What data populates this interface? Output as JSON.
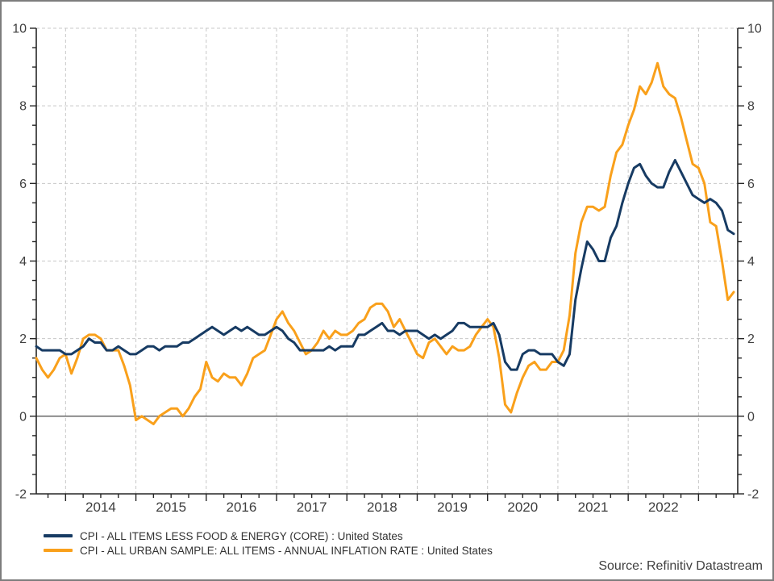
{
  "frame": {
    "background": "#ffffff",
    "border_color": "#7d7d7d",
    "axis_color": "#262626",
    "gridline_color": "#c8c8c8",
    "zero_line_color": "#333333",
    "label_color": "#3f3f3f"
  },
  "legend": [
    {
      "label": "CPI - ALL ITEMS LESS FOOD & ENERGY (CORE) : United States",
      "color": "#173b63"
    },
    {
      "label": "CPI - ALL URBAN SAMPLE: ALL ITEMS - ANNUAL INFLATION RATE : United States",
      "color": "#f9a01b"
    }
  ],
  "source": "Source: Refinitiv Datastream",
  "chart_data": {
    "type": "line",
    "frequency": "monthly",
    "x_start": "2013-08",
    "x_end": "2023-07",
    "ylim": [
      -2,
      10
    ],
    "y_ticks": [
      10,
      8,
      6,
      4,
      2,
      0,
      -2
    ],
    "y_minor_step": 0.5,
    "x_year_labels": [
      "2014",
      "2015",
      "2016",
      "2017",
      "2018",
      "2019",
      "2020",
      "2021",
      "2022"
    ],
    "grid": "dashed gray gridlines at major y ticks and at each January; solid black zero line; axes on left, right and bottom only",
    "legend_position": "bottom-left",
    "series": [
      {
        "name": "CPI - ALL ITEMS LESS FOOD & ENERGY (CORE) : United States",
        "color": "#173b63",
        "values": [
          1.8,
          1.7,
          1.7,
          1.7,
          1.7,
          1.6,
          1.6,
          1.7,
          1.8,
          2.0,
          1.9,
          1.9,
          1.7,
          1.7,
          1.8,
          1.7,
          1.6,
          1.6,
          1.7,
          1.8,
          1.8,
          1.7,
          1.8,
          1.8,
          1.8,
          1.9,
          1.9,
          2.0,
          2.1,
          2.2,
          2.3,
          2.2,
          2.1,
          2.2,
          2.3,
          2.2,
          2.3,
          2.2,
          2.1,
          2.1,
          2.2,
          2.3,
          2.2,
          2.0,
          1.9,
          1.7,
          1.7,
          1.7,
          1.7,
          1.7,
          1.8,
          1.7,
          1.8,
          1.8,
          1.8,
          2.1,
          2.1,
          2.2,
          2.3,
          2.4,
          2.2,
          2.2,
          2.1,
          2.2,
          2.2,
          2.2,
          2.1,
          2.0,
          2.1,
          2.0,
          2.1,
          2.2,
          2.4,
          2.4,
          2.3,
          2.3,
          2.3,
          2.3,
          2.4,
          2.1,
          1.4,
          1.2,
          1.2,
          1.6,
          1.7,
          1.7,
          1.6,
          1.6,
          1.6,
          1.4,
          1.3,
          1.6,
          3.0,
          3.8,
          4.5,
          4.3,
          4.0,
          4.0,
          4.6,
          4.9,
          5.5,
          6.0,
          6.4,
          6.5,
          6.2,
          6.0,
          5.9,
          5.9,
          6.3,
          6.6,
          6.3,
          6.0,
          5.7,
          5.6,
          5.5,
          5.6,
          5.5,
          5.3,
          4.8,
          4.7
        ]
      },
      {
        "name": "CPI - ALL URBAN SAMPLE: ALL ITEMS - ANNUAL INFLATION RATE : United States",
        "color": "#f9a01b",
        "values": [
          1.5,
          1.2,
          1.0,
          1.2,
          1.5,
          1.6,
          1.1,
          1.5,
          2.0,
          2.1,
          2.1,
          2.0,
          1.7,
          1.7,
          1.7,
          1.3,
          0.8,
          -0.1,
          0.0,
          -0.1,
          -0.2,
          0.0,
          0.1,
          0.2,
          0.2,
          0.0,
          0.2,
          0.5,
          0.7,
          1.4,
          1.0,
          0.9,
          1.1,
          1.0,
          1.0,
          0.8,
          1.1,
          1.5,
          1.6,
          1.7,
          2.1,
          2.5,
          2.7,
          2.4,
          2.2,
          1.9,
          1.6,
          1.7,
          1.9,
          2.2,
          2.0,
          2.2,
          2.1,
          2.1,
          2.2,
          2.4,
          2.5,
          2.8,
          2.9,
          2.9,
          2.7,
          2.3,
          2.5,
          2.2,
          1.9,
          1.6,
          1.5,
          1.9,
          2.0,
          1.8,
          1.6,
          1.8,
          1.7,
          1.7,
          1.8,
          2.1,
          2.3,
          2.5,
          2.3,
          1.5,
          0.3,
          0.1,
          0.6,
          1.0,
          1.3,
          1.4,
          1.2,
          1.2,
          1.4,
          1.4,
          1.7,
          2.6,
          4.2,
          5.0,
          5.4,
          5.4,
          5.3,
          5.4,
          6.2,
          6.8,
          7.0,
          7.5,
          7.9,
          8.5,
          8.3,
          8.6,
          9.1,
          8.5,
          8.3,
          8.2,
          7.7,
          7.1,
          6.5,
          6.4,
          6.0,
          5.0,
          4.9,
          4.0,
          3.0,
          3.2
        ]
      }
    ]
  }
}
